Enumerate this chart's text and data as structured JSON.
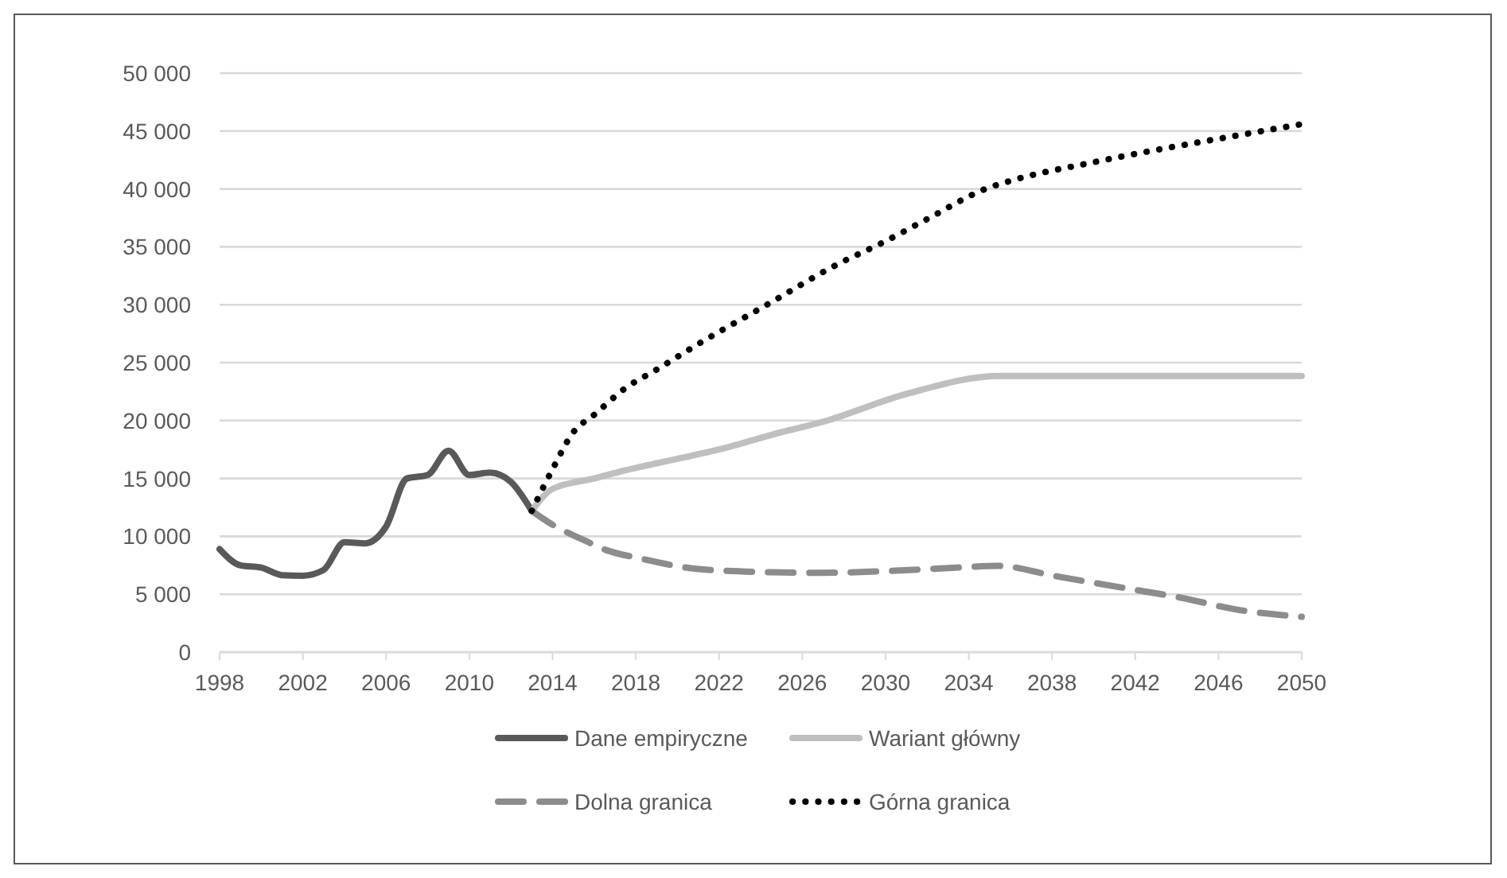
{
  "chart_data": {
    "type": "line",
    "grid": "y",
    "legend": "bottom",
    "xlim": [
      1998,
      2050
    ],
    "xticks": [
      1998,
      2002,
      2006,
      2010,
      2014,
      2018,
      2022,
      2026,
      2030,
      2034,
      2038,
      2042,
      2046,
      2050
    ],
    "ylim": [
      0,
      50000
    ],
    "yticks": [
      0,
      {
        "value": 5000,
        "label": "5 000"
      },
      {
        "value": 10000,
        "label": "10 000"
      },
      {
        "value": 15000,
        "label": "15 000"
      },
      {
        "value": 20000,
        "label": "20 000"
      },
      {
        "value": 25000,
        "label": "25 000"
      },
      {
        "value": 30000,
        "label": "30 000"
      },
      {
        "value": 35000,
        "label": "35 000"
      },
      {
        "value": 40000,
        "label": "40 000"
      },
      {
        "value": 45000,
        "label": "45 000"
      },
      {
        "value": 50000,
        "label": "50 000"
      }
    ],
    "series": [
      {
        "name": "Dane empiryczne",
        "color": "#595959",
        "line_style": "solid",
        "x": [
          1998,
          1999,
          2000,
          2001,
          2002,
          2003,
          2004,
          2005,
          2006,
          2007,
          2008,
          2009,
          2010,
          2011,
          2012,
          2013
        ],
        "values": [
          8900,
          7500,
          7300,
          6650,
          6600,
          7100,
          9500,
          9400,
          10850,
          15000,
          15300,
          17400,
          15300,
          15500,
          14700,
          12200
        ]
      },
      {
        "name": "Wariant główny",
        "color": "#bfbfbf",
        "line_style": "solid",
        "x": [
          2013,
          2014,
          2016,
          2017.5,
          2020,
          2022,
          2025,
          2027,
          2031,
          2035.5,
          2050
        ],
        "values": [
          12200,
          14100,
          15000,
          15700,
          16700,
          17500,
          19000,
          19900,
          22300,
          23850,
          23850
        ]
      },
      {
        "name": "Dolna granica",
        "color": "#8c8c8c",
        "line_style": "dashed",
        "x": [
          2013,
          2014,
          2015.6,
          2016.6,
          2018.2,
          2020.9,
          2024.5,
          2026.9,
          2030,
          2033.4,
          2035.4,
          2038.2,
          2041.6,
          2044.2,
          2046.8,
          2050
        ],
        "values": [
          12200,
          11000,
          9600,
          8800,
          8100,
          7200,
          6900,
          6850,
          7000,
          7300,
          7450,
          6550,
          5500,
          4700,
          3700,
          3050
        ]
      },
      {
        "name": "Górna granica",
        "color": "#000000",
        "line_style": "dotted",
        "x": [
          2013,
          2014,
          2015,
          2016,
          2017.5,
          2019,
          2020.9,
          2024.3,
          2027.7,
          2029.9,
          2032,
          2034.8,
          2036.4,
          2039.7,
          2042.8,
          2045.9,
          2050
        ],
        "values": [
          12200,
          15800,
          19000,
          20500,
          22800,
          24400,
          26500,
          30000,
          33500,
          35400,
          37400,
          40000,
          40900,
          42200,
          43300,
          44300,
          45600
        ]
      }
    ]
  }
}
